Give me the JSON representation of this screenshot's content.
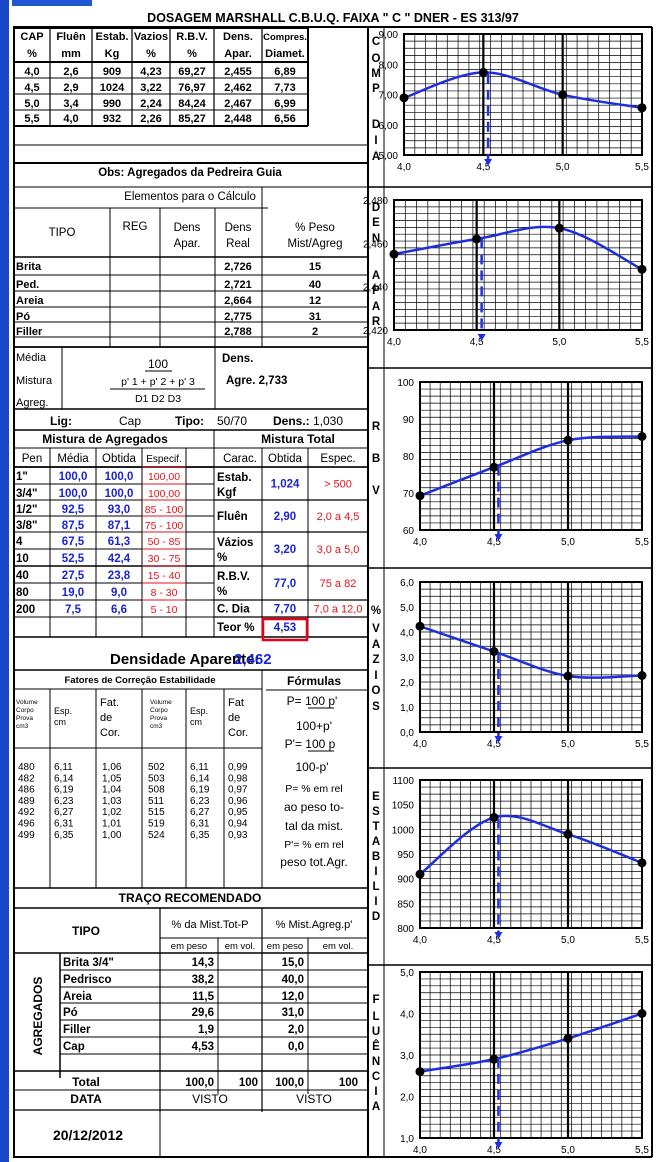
{
  "title": "DOSAGEM MARSHALL C.B.U.Q.  FAIXA \" C \"   DNER - ES 313/97",
  "marshall": {
    "headers1": [
      "CAP",
      "Fluên",
      "Estab.",
      "Vazios",
      "R.B.V.",
      "Dens.",
      "Compres."
    ],
    "headers2": [
      "%",
      "mm",
      "Kg",
      "%",
      "%",
      "Apar.",
      "Diamet."
    ],
    "rows": [
      [
        "4,0",
        "2,6",
        "909",
        "4,23",
        "69,27",
        "2,455",
        "6,89"
      ],
      [
        "4,5",
        "2,9",
        "1024",
        "3,22",
        "76,97",
        "2,462",
        "7,73"
      ],
      [
        "5,0",
        "3,4",
        "990",
        "2,24",
        "84,24",
        "2,467",
        "6,99"
      ],
      [
        "5,5",
        "4,0",
        "932",
        "2,26",
        "85,27",
        "2,448",
        "6,56"
      ]
    ]
  },
  "obs": "Obs: Agregados da Pedreira Guia",
  "elementos": {
    "title": "Elementos para o Cálculo",
    "h_tipo": "TIPO",
    "h_reg": "REG",
    "h_dens_apar_1": "Dens",
    "h_dens_apar_2": "Apar.",
    "h_dens_real_1": "Dens",
    "h_dens_real_2": "Real",
    "h_peso_1": "% Peso",
    "h_peso_2": "Mist/Agreg",
    "rows": [
      {
        "tipo": "Brita",
        "dens_real": "2,726",
        "peso": "15"
      },
      {
        "tipo": "Ped.",
        "dens_real": "2,721",
        "peso": "40"
      },
      {
        "tipo": "Areia",
        "dens_real": "2,664",
        "peso": "12"
      },
      {
        "tipo": "Pó",
        "dens_real": "2,775",
        "peso": "31"
      },
      {
        "tipo": "Filler",
        "dens_real": "2,788",
        "peso": "2"
      }
    ],
    "media1": "Média",
    "media2": "Mistura",
    "media3": "Agreg.",
    "formula_num": "100",
    "formula_den1": "p' 1 + p' 2 + p' 3",
    "formula_den2": "D1  D2  D3",
    "dens_label": "Dens.",
    "agre_label": "Agre. 2,733"
  },
  "lig": {
    "lig_label": "Lig:",
    "lig_val": "Cap",
    "tipo_label": "Tipo:",
    "tipo_val": "50/70",
    "dens_label": "Dens.:",
    "dens_val": "1,030"
  },
  "mistura": {
    "title_ag": "Mistura de Agregados",
    "title_total": "Mistura Total",
    "headers": [
      "Pen",
      "Média",
      "Obtida",
      "Especif.",
      "Carac.",
      "Obtida",
      "Espec."
    ],
    "rows": [
      {
        "pen": "1\"",
        "media": "100,0",
        "obtida": "100,0",
        "espec": "100,00"
      },
      {
        "pen": "3/4\"",
        "media": "100,0",
        "obtida": "100,0",
        "espec": "100,00"
      },
      {
        "pen": "1/2\"",
        "media": "92,5",
        "obtida": "93,0",
        "espec": "85 - 100"
      },
      {
        "pen": "3/8\"",
        "media": "87,5",
        "obtida": "87,1",
        "espec": "75 - 100"
      },
      {
        "pen": "4",
        "media": "67,5",
        "obtida": "61,3",
        "espec": "50 - 85"
      },
      {
        "pen": "10",
        "media": "52,5",
        "obtida": "42,4",
        "espec": "30 - 75"
      },
      {
        "pen": "40",
        "media": "27,5",
        "obtida": "23,8",
        "espec": "15 - 40"
      },
      {
        "pen": "80",
        "media": "19,0",
        "obtida": "9,0",
        "espec": "8 - 30"
      },
      {
        "pen": "200",
        "media": "7,5",
        "obtida": "6,6",
        "espec": "5 - 10"
      }
    ],
    "carac": [
      {
        "l1": "Estab.",
        "l2": "Kgf",
        "obtida": "1,024",
        "espec": "> 500"
      },
      {
        "l1": "Fluên",
        "l2": "",
        "obtida": "2,90",
        "espec": "2,0 a 4,5"
      },
      {
        "l1": "Vázios",
        "l2": "%",
        "obtida": "3,20",
        "espec": "3,0 a 5,0"
      },
      {
        "l1": "R.B.V.",
        "l2": "%",
        "obtida": "77,0",
        "espec": "75 a 82"
      },
      {
        "l1": "C. Dia",
        "l2": "",
        "obtida": "7,70",
        "espec": "7,0 a 12,0"
      },
      {
        "l1": "Teor %",
        "l2": "",
        "obtida": "4,53",
        "espec": ""
      }
    ]
  },
  "densidade": {
    "label": "Densidade Aparente:",
    "value": "2,462"
  },
  "fatores": {
    "title": "Fatores de Correção Estabilidade",
    "h_vol": [
      "Volume",
      "Corpo",
      "Prova",
      "cm3"
    ],
    "h_esp": [
      "Esp.",
      "cm"
    ],
    "h_fat": [
      "Fat.",
      "de",
      "Cor."
    ],
    "h_fat2": [
      "Fat",
      "de",
      "Cor."
    ],
    "left": [
      [
        "480",
        "6,11",
        "1,06"
      ],
      [
        "482",
        "6,14",
        "1,05"
      ],
      [
        "486",
        "6,19",
        "1,04"
      ],
      [
        "489",
        "6,23",
        "1,03"
      ],
      [
        "492",
        "6,27",
        "1,02"
      ],
      [
        "496",
        "6,31",
        "1,01"
      ],
      [
        "499",
        "6,35",
        "1,00"
      ]
    ],
    "right": [
      [
        "502",
        "6,11",
        "0,99"
      ],
      [
        "503",
        "6,14",
        "0,98"
      ],
      [
        "508",
        "6,19",
        "0,97"
      ],
      [
        "511",
        "6,23",
        "0,96"
      ],
      [
        "515",
        "6,27",
        "0,95"
      ],
      [
        "519",
        "6,31",
        "0,94"
      ],
      [
        "524",
        "6,35",
        "0,93"
      ]
    ]
  },
  "formulas": {
    "title": "Fórmulas",
    "lines": [
      "P= 100 p'",
      "100+p'",
      "P'= 100 p",
      "100-p'",
      "P= % em rel",
      "ao  peso to-",
      "tal  da mist.",
      "P'= % em rel",
      "peso tot.Agr."
    ]
  },
  "traco": {
    "title": "TRAÇO RECOMENDADO",
    "h_tipo": "TIPO",
    "h_mist": "% da Mist.Tot-P",
    "h_agreg": "% Mist.Agreg.p'",
    "h_sub": [
      "em peso",
      "em vol.",
      "em peso",
      "em vol."
    ],
    "side": "AGREGADOS",
    "rows": [
      {
        "tipo": "Brita  3/4\"",
        "peso": "14,3",
        "peso_ag": "15,0"
      },
      {
        "tipo": "Pedrisco",
        "peso": "38,2",
        "peso_ag": "40,0"
      },
      {
        "tipo": "Areia",
        "peso": "11,5",
        "peso_ag": "12,0"
      },
      {
        "tipo": "Pó",
        "peso": "29,6",
        "peso_ag": "31,0"
      },
      {
        "tipo": "Filler",
        "peso": "1,9",
        "peso_ag": "2,0"
      },
      {
        "tipo": "Cap",
        "peso": "4,53",
        "peso_ag": "0,0"
      }
    ],
    "total": {
      "label": "Total",
      "peso": "100,0",
      "vol": "100",
      "peso_ag": "100,0",
      "vol_ag": "100"
    },
    "data_label": "DATA",
    "visto1": "VISTO",
    "visto2": "VISTO",
    "date": "20/12/2012"
  },
  "chart_data": [
    {
      "type": "line",
      "side_label": "COMP DIA",
      "x": [
        4.0,
        4.5,
        5.0,
        5.5
      ],
      "y": [
        6.89,
        7.73,
        6.99,
        6.56
      ],
      "ylim": [
        5.0,
        9.0
      ],
      "yticks": [
        "5,00",
        "6,00",
        "7,00",
        "8,00",
        "9,00"
      ],
      "xticks": [
        "4,0",
        "4,5",
        "5,0",
        "5,5"
      ],
      "marker_x": 4.53
    },
    {
      "type": "line",
      "side_label": "DEN APAR",
      "x": [
        4.0,
        4.5,
        5.0,
        5.5
      ],
      "y": [
        2.455,
        2.462,
        2.467,
        2.448
      ],
      "ylim": [
        2.42,
        2.48
      ],
      "yticks": [
        "2,420",
        "2,440",
        "2,460",
        "2,480"
      ],
      "xticks": [
        "4,0",
        "4,5",
        "5,0",
        "5,5"
      ],
      "marker_x": 4.53
    },
    {
      "type": "line",
      "side_label": "RBV",
      "x": [
        4.0,
        4.5,
        5.0,
        5.5
      ],
      "y": [
        69.27,
        76.97,
        84.24,
        85.27
      ],
      "ylim": [
        60,
        100
      ],
      "yticks": [
        "60",
        "70",
        "80",
        "90",
        "100"
      ],
      "xticks": [
        "4,0",
        "4,5",
        "5,0",
        "5,5"
      ],
      "marker_x": 4.53
    },
    {
      "type": "line",
      "side_label": "% VAZIOS",
      "x": [
        4.0,
        4.5,
        5.0,
        5.5
      ],
      "y": [
        4.23,
        3.22,
        2.24,
        2.26
      ],
      "ylim": [
        0,
        6
      ],
      "yticks": [
        "0,0",
        "1,0",
        "2,0",
        "3,0",
        "4,0",
        "5,0",
        "6,0"
      ],
      "xticks": [
        "4,0",
        "4,5",
        "5,0",
        "5,5"
      ],
      "marker_x": 4.53
    },
    {
      "type": "line",
      "side_label": "ESTABILID",
      "x": [
        4.0,
        4.5,
        5.0,
        5.5
      ],
      "y": [
        909,
        1024,
        990,
        932
      ],
      "ylim": [
        800,
        1100
      ],
      "yticks": [
        "800",
        "850",
        "900",
        "950",
        "1000",
        "1050",
        "1100"
      ],
      "xticks": [
        "4,0",
        "4,5",
        "5,0",
        "5,5"
      ],
      "marker_x": 4.53
    },
    {
      "type": "line",
      "side_label": "FLUÊNCIA",
      "x": [
        4.0,
        4.5,
        5.0,
        5.5
      ],
      "y": [
        2.6,
        2.9,
        3.4,
        4.0
      ],
      "ylim": [
        1.0,
        5.0
      ],
      "yticks": [
        "1,0",
        "2,0",
        "3,0",
        "4,0",
        "5,0"
      ],
      "xticks": [
        "4,0",
        "4,5",
        "5,0",
        "5,5"
      ],
      "marker_x": 4.53
    }
  ]
}
